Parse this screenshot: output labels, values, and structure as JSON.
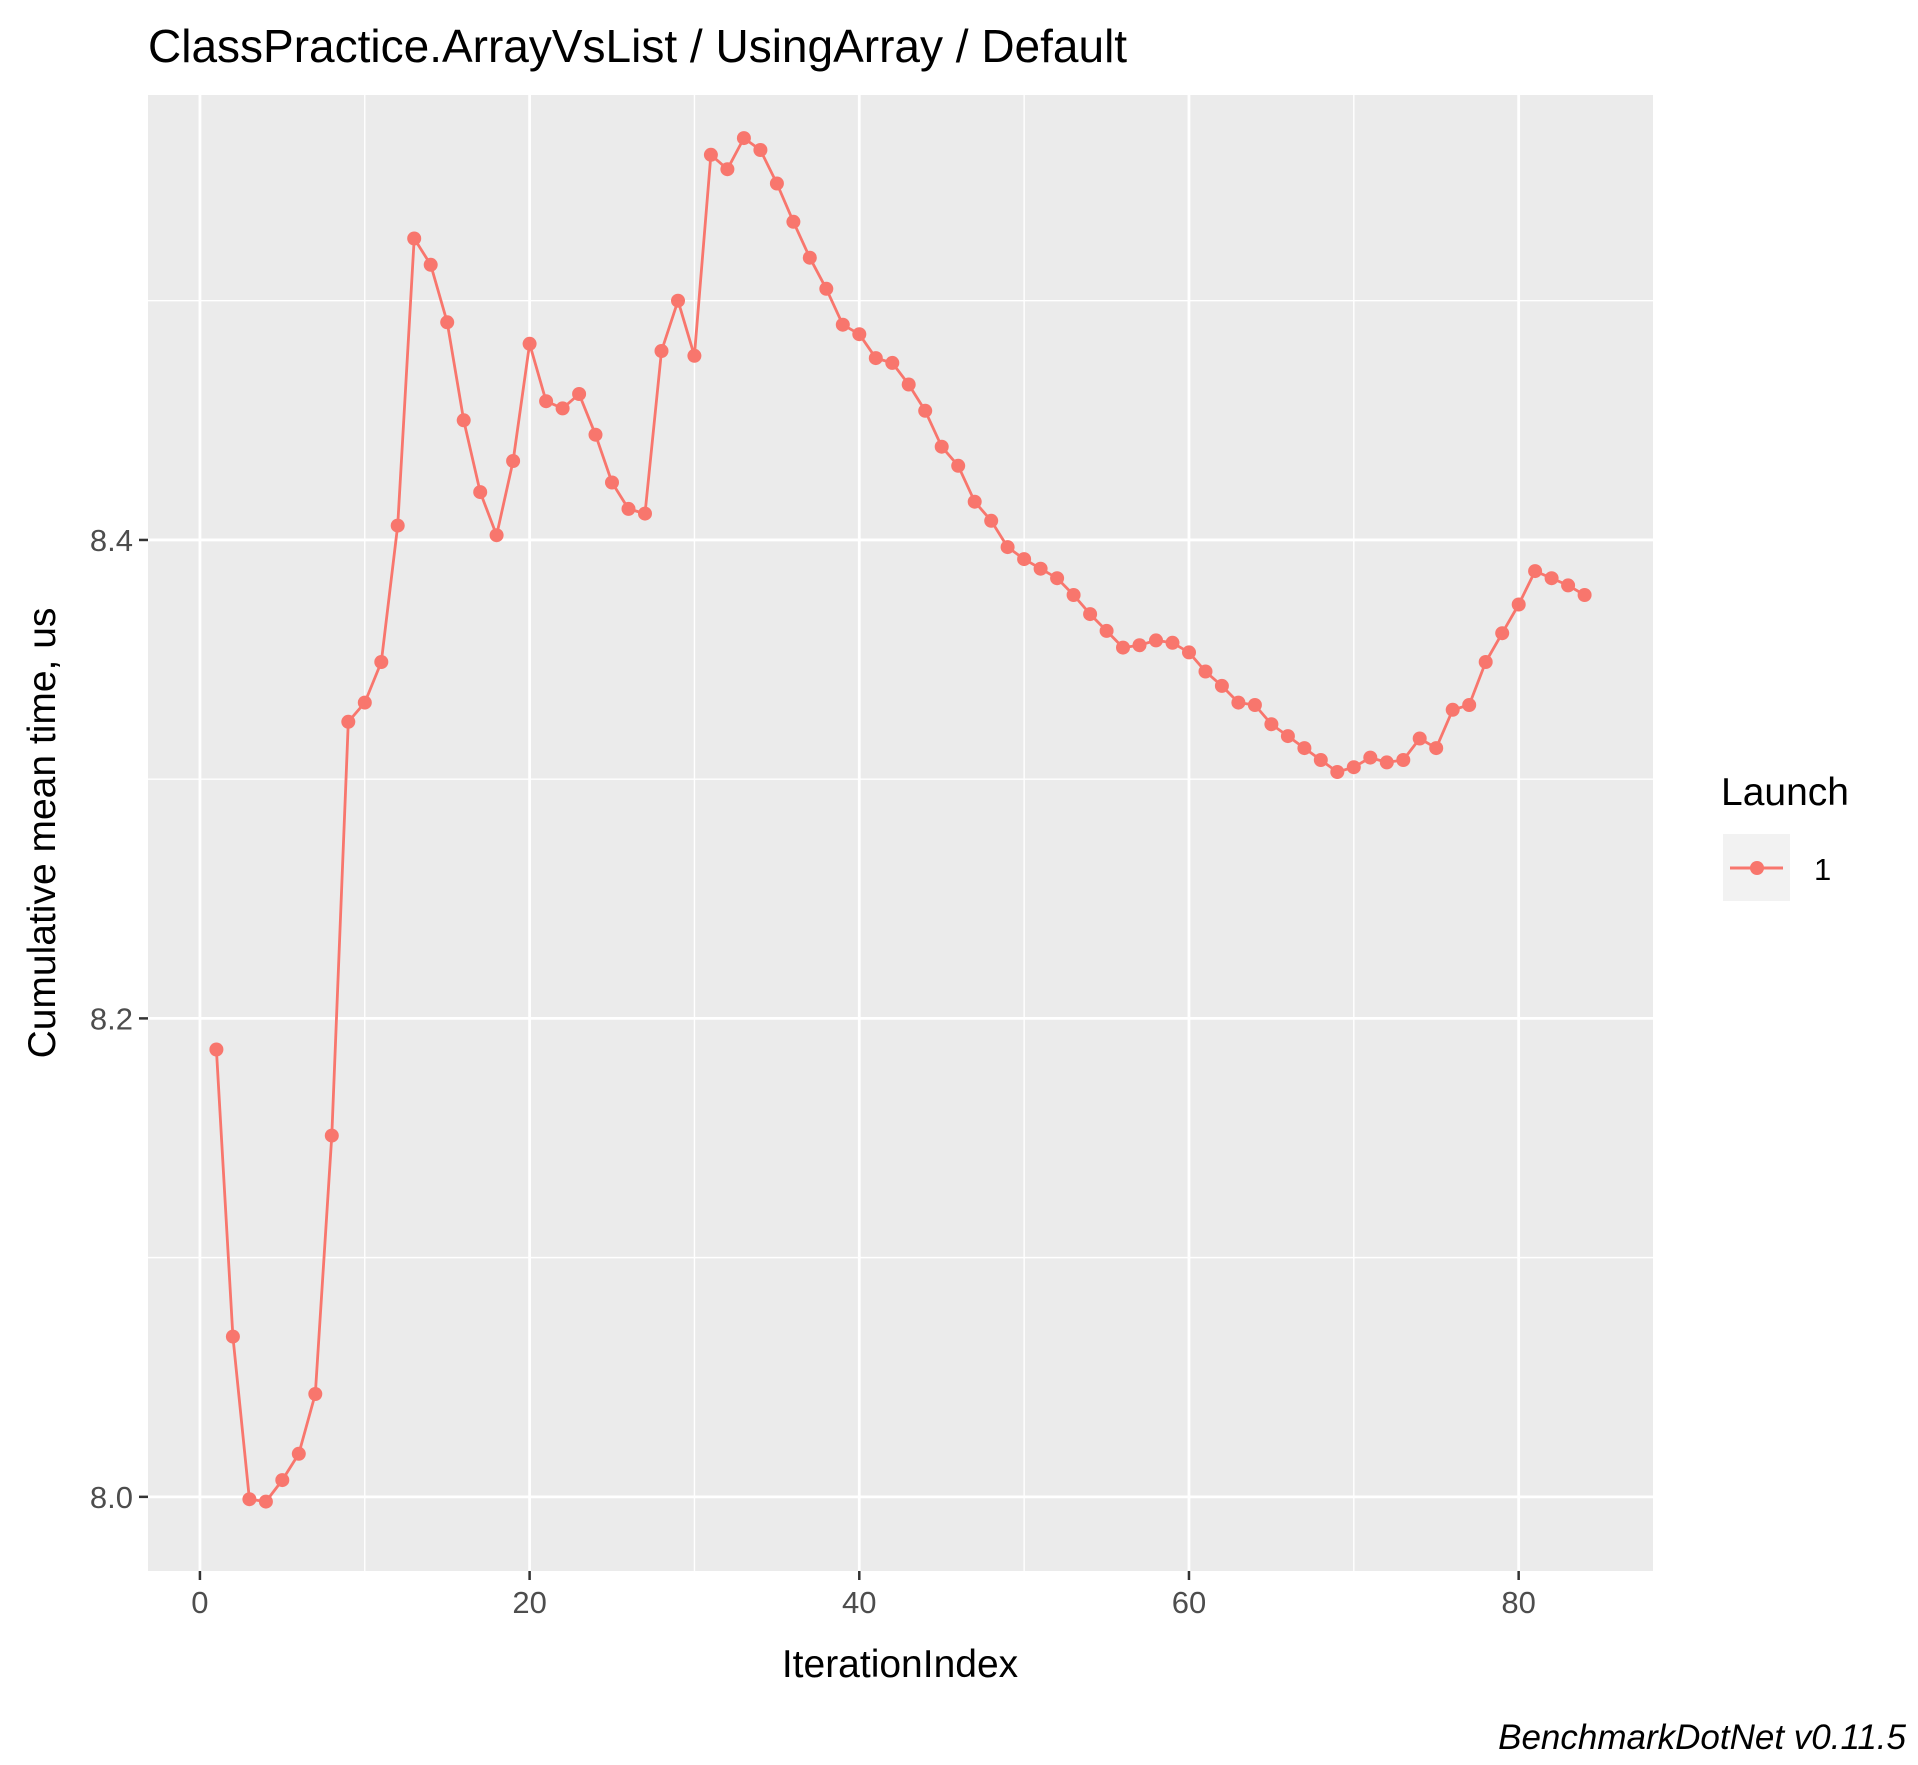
{
  "chart_data": {
    "type": "line",
    "title": "ClassPractice.ArrayVsList / UsingArray / Default",
    "xlabel": "IterationIndex",
    "ylabel": "Cumulative mean time, us",
    "caption": "BenchmarkDotNet v0.11.5",
    "xlim": [
      -3.15,
      88.15
    ],
    "ylim": [
      7.969,
      8.586
    ],
    "x_ticks": [
      0,
      20,
      40,
      60,
      80
    ],
    "y_ticks": [
      8.0,
      8.2,
      8.4
    ],
    "x_tick_labels": [
      "0",
      "20",
      "40",
      "60",
      "80"
    ],
    "y_tick_labels": [
      "8.0",
      "8.2",
      "8.4"
    ],
    "x_minor_ticks": [
      10,
      30,
      50,
      70
    ],
    "y_minor_ticks": [
      8.1,
      8.3,
      8.5
    ],
    "grid": true,
    "legend": {
      "title": "Launch",
      "position": "right"
    },
    "series": [
      {
        "name": "1",
        "color": "#F8766D",
        "x": [
          1,
          2,
          3,
          4,
          5,
          6,
          7,
          8,
          9,
          10,
          11,
          12,
          13,
          14,
          15,
          16,
          17,
          18,
          19,
          20,
          21,
          22,
          23,
          24,
          25,
          26,
          27,
          28,
          29,
          30,
          31,
          32,
          33,
          34,
          35,
          36,
          37,
          38,
          39,
          40,
          41,
          42,
          43,
          44,
          45,
          46,
          47,
          48,
          49,
          50,
          51,
          52,
          53,
          54,
          55,
          56,
          57,
          58,
          59,
          60,
          61,
          62,
          63,
          64,
          65,
          66,
          67,
          68,
          69,
          70,
          71,
          72,
          73,
          74,
          75,
          76,
          77,
          78,
          79,
          80,
          81,
          82,
          83,
          84
        ],
        "values": [
          8.187,
          8.067,
          7.999,
          7.998,
          8.007,
          8.018,
          8.043,
          8.151,
          8.324,
          8.332,
          8.349,
          8.406,
          8.526,
          8.515,
          8.491,
          8.45,
          8.42,
          8.402,
          8.433,
          8.482,
          8.458,
          8.455,
          8.461,
          8.444,
          8.424,
          8.413,
          8.411,
          8.479,
          8.5,
          8.477,
          8.561,
          8.555,
          8.568,
          8.563,
          8.549,
          8.533,
          8.518,
          8.505,
          8.49,
          8.486,
          8.476,
          8.474,
          8.465,
          8.454,
          8.439,
          8.431,
          8.416,
          8.408,
          8.397,
          8.392,
          8.388,
          8.384,
          8.377,
          8.369,
          8.362,
          8.355,
          8.356,
          8.358,
          8.357,
          8.353,
          8.345,
          8.339,
          8.332,
          8.331,
          8.323,
          8.318,
          8.313,
          8.308,
          8.303,
          8.305,
          8.309,
          8.307,
          8.308,
          8.317,
          8.313,
          8.329,
          8.331,
          8.349,
          8.361,
          8.373,
          8.387,
          8.384,
          8.381,
          8.377
        ]
      }
    ]
  }
}
